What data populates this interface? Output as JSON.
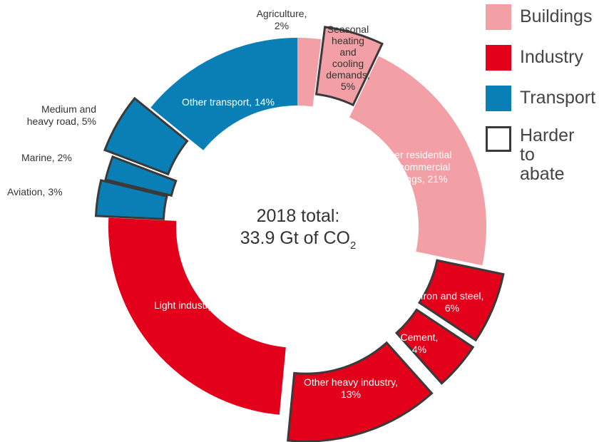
{
  "chart_data": {
    "type": "donut",
    "center_label_line1": "2018 total:",
    "center_label_line2": "33.9 Gt of CO",
    "center_label_subscript": "2",
    "segments": [
      {
        "label": "Agriculture, 2%",
        "category": "Buildings",
        "value": 2,
        "harder_to_abate": false
      },
      {
        "label": "Seasonal heating and cooling demands, 5%",
        "category": "Buildings",
        "value": 5,
        "harder_to_abate": true
      },
      {
        "label": "Other residential and commercial buildings, 21%",
        "category": "Buildings",
        "value": 21,
        "harder_to_abate": false
      },
      {
        "label": "Iron and steel, 6%",
        "category": "Industry",
        "value": 6,
        "harder_to_abate": true
      },
      {
        "label": "Cement, 4%",
        "category": "Industry",
        "value": 4,
        "harder_to_abate": true
      },
      {
        "label": "Other heavy industry, 13%",
        "category": "Industry",
        "value": 13,
        "harder_to_abate": true
      },
      {
        "label": "Light industry, 24%",
        "category": "Industry",
        "value": 24,
        "harder_to_abate": false
      },
      {
        "label": "Aviation, 3%",
        "category": "Transport",
        "value": 3,
        "harder_to_abate": true
      },
      {
        "label": "Marine, 2%",
        "category": "Transport",
        "value": 2,
        "harder_to_abate": true
      },
      {
        "label": "Medium and heavy road, 5%",
        "category": "Transport",
        "value": 5,
        "harder_to_abate": true
      },
      {
        "label": "Other transport, 14%",
        "category": "Transport",
        "value": 14,
        "harder_to_abate": false
      }
    ],
    "legend": [
      {
        "label": "Buildings",
        "color": "#f2a0a6"
      },
      {
        "label": "Industry",
        "color": "#e2001a"
      },
      {
        "label": "Transport",
        "color": "#0a7fb5"
      },
      {
        "label": "Harder to abate",
        "color": "outline"
      }
    ],
    "legend_placement": "top-right"
  }
}
